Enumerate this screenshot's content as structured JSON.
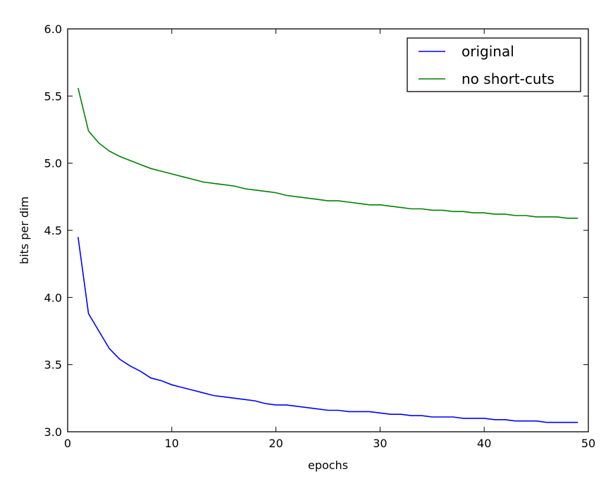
{
  "chart_data": {
    "type": "line",
    "xlabel": "epochs",
    "ylabel": "bits per dim",
    "xlim": [
      0,
      50
    ],
    "ylim": [
      3.0,
      6.0
    ],
    "xticks": [
      "0",
      "10",
      "20",
      "30",
      "40",
      "50"
    ],
    "yticks": [
      "3.0",
      "3.5",
      "4.0",
      "4.5",
      "5.0",
      "5.5",
      "6.0"
    ],
    "grid": false,
    "legend_position": "top-right",
    "x": [
      1,
      2,
      3,
      4,
      5,
      6,
      7,
      8,
      9,
      10,
      11,
      12,
      13,
      14,
      15,
      16,
      17,
      18,
      19,
      20,
      21,
      22,
      23,
      24,
      25,
      26,
      27,
      28,
      29,
      30,
      31,
      32,
      33,
      34,
      35,
      36,
      37,
      38,
      39,
      40,
      41,
      42,
      43,
      44,
      45,
      46,
      47,
      48,
      49
    ],
    "series": [
      {
        "name": "original",
        "color": "#0000ff",
        "values": [
          4.45,
          3.88,
          3.75,
          3.62,
          3.54,
          3.49,
          3.45,
          3.4,
          3.38,
          3.35,
          3.33,
          3.31,
          3.29,
          3.27,
          3.26,
          3.25,
          3.24,
          3.23,
          3.21,
          3.2,
          3.2,
          3.19,
          3.18,
          3.17,
          3.16,
          3.16,
          3.15,
          3.15,
          3.15,
          3.14,
          3.13,
          3.13,
          3.12,
          3.12,
          3.11,
          3.11,
          3.11,
          3.1,
          3.1,
          3.1,
          3.09,
          3.09,
          3.08,
          3.08,
          3.08,
          3.07,
          3.07,
          3.07,
          3.07
        ]
      },
      {
        "name": "no short-cuts",
        "color": "#008000",
        "values": [
          5.56,
          5.24,
          5.15,
          5.09,
          5.05,
          5.02,
          4.99,
          4.96,
          4.94,
          4.92,
          4.9,
          4.88,
          4.86,
          4.85,
          4.84,
          4.83,
          4.81,
          4.8,
          4.79,
          4.78,
          4.76,
          4.75,
          4.74,
          4.73,
          4.72,
          4.72,
          4.71,
          4.7,
          4.69,
          4.69,
          4.68,
          4.67,
          4.66,
          4.66,
          4.65,
          4.65,
          4.64,
          4.64,
          4.63,
          4.63,
          4.62,
          4.62,
          4.61,
          4.61,
          4.6,
          4.6,
          4.6,
          4.59,
          4.59
        ]
      }
    ]
  }
}
